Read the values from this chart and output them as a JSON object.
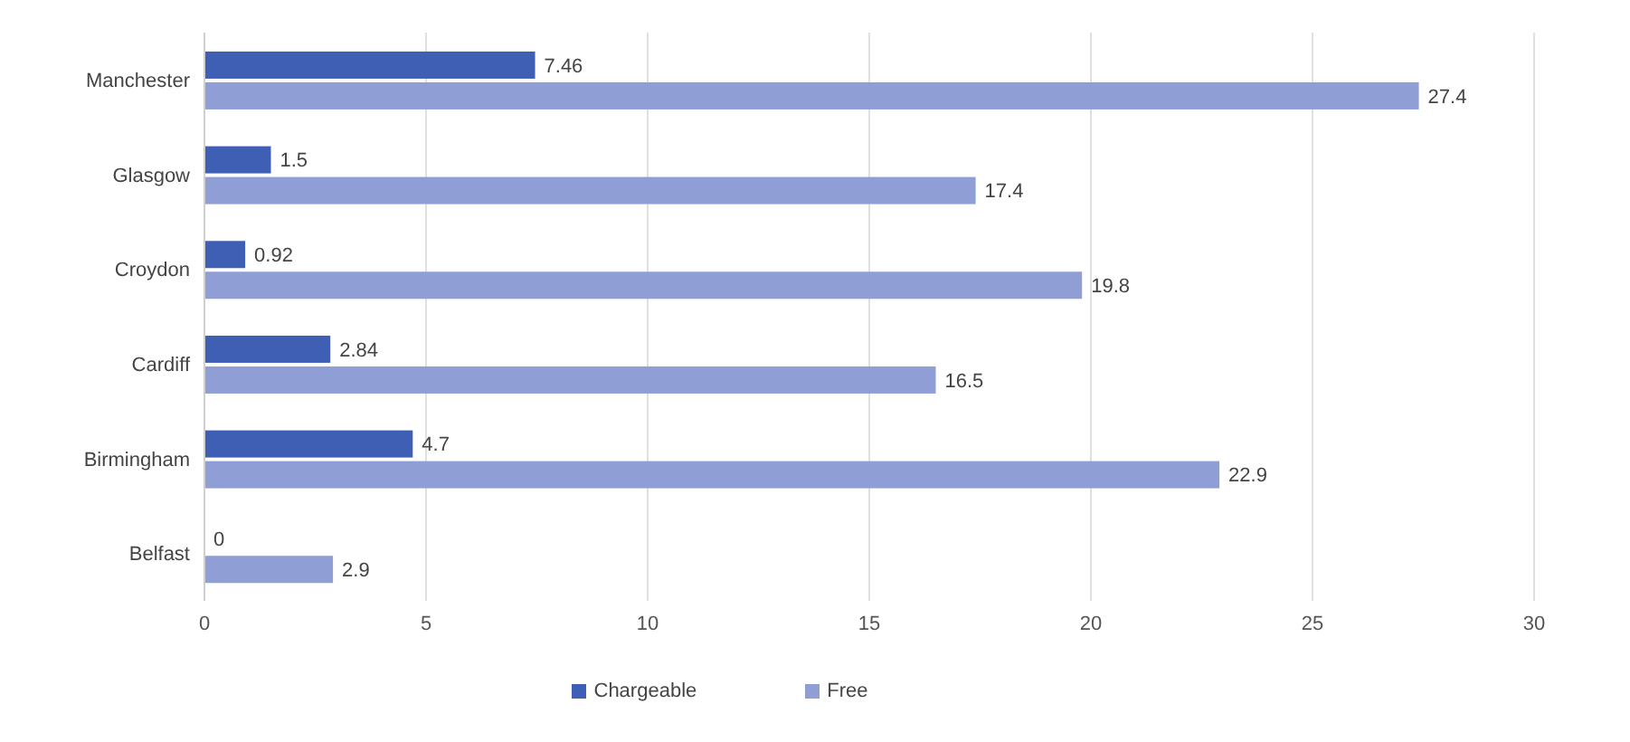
{
  "chart_data": {
    "type": "bar",
    "orientation": "horizontal",
    "categories": [
      "Manchester",
      "Glasgow",
      "Croydon",
      "Cardiff",
      "Birmingham",
      "Belfast"
    ],
    "series": [
      {
        "name": "Chargeable",
        "color": "#3f5fb4",
        "values": [
          7.46,
          1.5,
          0.92,
          2.84,
          4.7,
          0
        ]
      },
      {
        "name": "Free",
        "color": "#8f9fd6",
        "values": [
          27.4,
          17.4,
          19.8,
          16.5,
          22.9,
          2.9
        ]
      }
    ],
    "xlim": [
      0,
      30
    ],
    "xticks": [
      0,
      5,
      10,
      15,
      20,
      25,
      30
    ],
    "grid": "x",
    "legend": "bottom",
    "data_labels": true
  }
}
